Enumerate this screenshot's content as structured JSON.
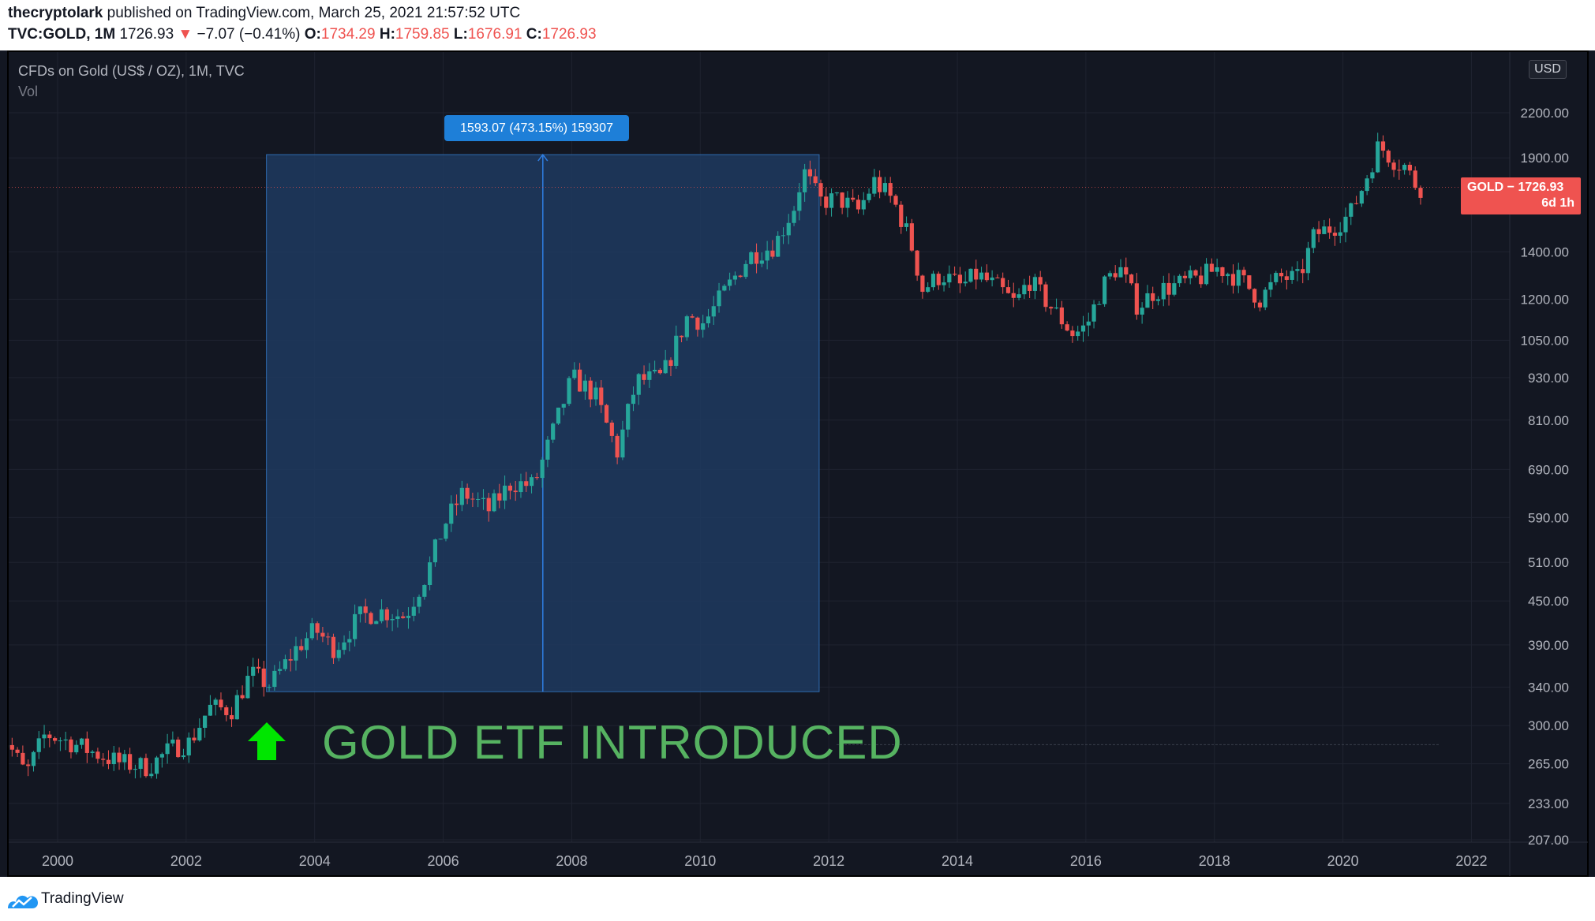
{
  "header": {
    "author": "thecryptolark",
    "published_text": "published on TradingView.com, March 25, 2021 21:57:52 UTC",
    "symbol": "TVC:GOLD, 1M",
    "last": "1726.93",
    "change": "−7.07 (−0.41%)",
    "o_label": "O:",
    "o_value": "1734.29",
    "h_label": "H:",
    "h_value": "1759.85",
    "l_label": "L:",
    "l_value": "1676.91",
    "c_label": "C:",
    "c_value": "1726.93"
  },
  "legend": {
    "title": "CFDs on Gold (US$ / OZ), 1M, TVC",
    "volume": "Vol"
  },
  "currency_button": "USD",
  "price_label": {
    "line1": "GOLD − 1726.93",
    "line2": "6d 1h"
  },
  "measure_label": "1593.07 (473.15%) 159307",
  "annotation": {
    "text": "GOLD ETF INTRODUCED"
  },
  "colors": {
    "up": "#26a69a",
    "down": "#ef5350",
    "background": "#131722",
    "measure_fill": "#1e3a5f",
    "annotation": "#56b361"
  },
  "footer": {
    "brand": "TradingView"
  },
  "chart_data": {
    "type": "candlestick",
    "scale": "log",
    "title": "CFDs on Gold (US$ / OZ), 1M, TVC",
    "y_ticks": [
      "207.00",
      "233.00",
      "265.00",
      "300.00",
      "340.00",
      "390.00",
      "450.00",
      "510.00",
      "590.00",
      "690.00",
      "810.00",
      "930.00",
      "1050.00",
      "1200.00",
      "1400.00",
      "1900.00",
      "2200.00"
    ],
    "x_ticks": [
      "2000",
      "2002",
      "2004",
      "2006",
      "2008",
      "2010",
      "2012",
      "2014",
      "2016",
      "2018",
      "2020",
      "2022"
    ],
    "ylim": [
      207,
      2500
    ],
    "xlim": [
      1999.2,
      2022.7
    ],
    "current_price": 1726.93,
    "measure": {
      "x_start": 2003.25,
      "x_end": 2011.85,
      "y_low": 335,
      "y_high": 1920
    },
    "annotation_level": 282,
    "series": [
      {
        "t": 1999.25,
        "price": 285
      },
      {
        "t": 1999.55,
        "price": 256
      },
      {
        "t": 1999.85,
        "price": 292
      },
      {
        "t": 2000.2,
        "price": 285
      },
      {
        "t": 2000.6,
        "price": 275
      },
      {
        "t": 2001.0,
        "price": 266
      },
      {
        "t": 2001.45,
        "price": 262
      },
      {
        "t": 2001.8,
        "price": 278
      },
      {
        "t": 2002.1,
        "price": 284
      },
      {
        "t": 2002.4,
        "price": 318
      },
      {
        "t": 2002.75,
        "price": 316
      },
      {
        "t": 2003.05,
        "price": 355
      },
      {
        "t": 2003.35,
        "price": 342
      },
      {
        "t": 2003.75,
        "price": 385
      },
      {
        "t": 2004.05,
        "price": 410
      },
      {
        "t": 2004.35,
        "price": 385
      },
      {
        "t": 2004.75,
        "price": 428
      },
      {
        "t": 2005.1,
        "price": 435
      },
      {
        "t": 2005.45,
        "price": 428
      },
      {
        "t": 2005.8,
        "price": 495
      },
      {
        "t": 2006.05,
        "price": 575
      },
      {
        "t": 2006.35,
        "price": 640
      },
      {
        "t": 2006.75,
        "price": 605
      },
      {
        "t": 2007.1,
        "price": 660
      },
      {
        "t": 2007.45,
        "price": 655
      },
      {
        "t": 2007.75,
        "price": 780
      },
      {
        "t": 2008.05,
        "price": 930
      },
      {
        "t": 2008.4,
        "price": 880
      },
      {
        "t": 2008.75,
        "price": 730
      },
      {
        "t": 2009.05,
        "price": 920
      },
      {
        "t": 2009.45,
        "price": 930
      },
      {
        "t": 2009.85,
        "price": 1140
      },
      {
        "t": 2010.1,
        "price": 1110
      },
      {
        "t": 2010.45,
        "price": 1240
      },
      {
        "t": 2010.8,
        "price": 1380
      },
      {
        "t": 2011.2,
        "price": 1430
      },
      {
        "t": 2011.5,
        "price": 1620
      },
      {
        "t": 2011.65,
        "price": 1820
      },
      {
        "t": 2011.9,
        "price": 1650
      },
      {
        "t": 2012.2,
        "price": 1660
      },
      {
        "t": 2012.5,
        "price": 1600
      },
      {
        "t": 2012.75,
        "price": 1760
      },
      {
        "t": 2013.05,
        "price": 1650
      },
      {
        "t": 2013.3,
        "price": 1460
      },
      {
        "t": 2013.5,
        "price": 1240
      },
      {
        "t": 2013.8,
        "price": 1300
      },
      {
        "t": 2014.1,
        "price": 1250
      },
      {
        "t": 2014.35,
        "price": 1300
      },
      {
        "t": 2014.7,
        "price": 1240
      },
      {
        "t": 2014.95,
        "price": 1180
      },
      {
        "t": 2015.15,
        "price": 1280
      },
      {
        "t": 2015.5,
        "price": 1170
      },
      {
        "t": 2015.85,
        "price": 1070
      },
      {
        "t": 2016.05,
        "price": 1100
      },
      {
        "t": 2016.3,
        "price": 1250
      },
      {
        "t": 2016.55,
        "price": 1340
      },
      {
        "t": 2016.85,
        "price": 1170
      },
      {
        "t": 2017.1,
        "price": 1230
      },
      {
        "t": 2017.5,
        "price": 1260
      },
      {
        "t": 2017.85,
        "price": 1290
      },
      {
        "t": 2018.1,
        "price": 1330
      },
      {
        "t": 2018.45,
        "price": 1280
      },
      {
        "t": 2018.75,
        "price": 1200
      },
      {
        "t": 2019.05,
        "price": 1290
      },
      {
        "t": 2019.35,
        "price": 1280
      },
      {
        "t": 2019.6,
        "price": 1480
      },
      {
        "t": 2019.9,
        "price": 1520
      },
      {
        "t": 2020.15,
        "price": 1580
      },
      {
        "t": 2020.35,
        "price": 1730
      },
      {
        "t": 2020.6,
        "price": 1980
      },
      {
        "t": 2020.85,
        "price": 1880
      },
      {
        "t": 2021.0,
        "price": 1850
      },
      {
        "t": 2021.2,
        "price": 1726.93
      }
    ]
  }
}
